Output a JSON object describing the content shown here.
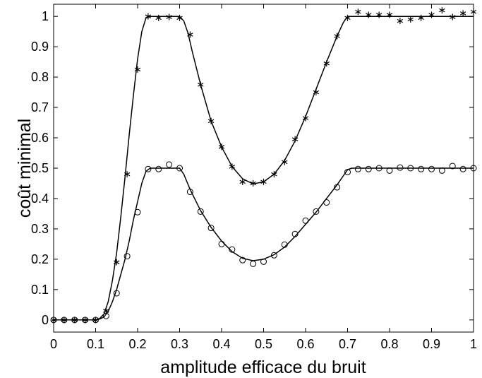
{
  "chart_data": {
    "type": "line",
    "title": "",
    "xlabel": "amplitude efficace du bruit",
    "ylabel": "coût minimal",
    "xlim": [
      0,
      1
    ],
    "ylim": [
      -0.04,
      1.04
    ],
    "xticks": [
      0,
      0.1,
      0.2,
      0.3,
      0.4,
      0.5,
      0.6,
      0.7,
      0.8,
      0.9,
      1
    ],
    "xtick_labels": [
      "0",
      "0.1",
      "0.2",
      "0.3",
      "0.4",
      "0.5",
      "0.6",
      "0.7",
      "0.8",
      "0.9",
      "1"
    ],
    "yticks": [
      0,
      0.1,
      0.2,
      0.3,
      0.4,
      0.5,
      0.6,
      0.7,
      0.8,
      0.9,
      1
    ],
    "ytick_labels": [
      "0",
      "0.1",
      "0.2",
      "0.3",
      "0.4",
      "0.5",
      "0.6",
      "0.7",
      "0.8",
      "0.9",
      "1"
    ],
    "grid": false,
    "legend": false,
    "series": [
      {
        "marker": "asterisk",
        "color": "#000000",
        "points": [
          [
            0,
            0
          ],
          [
            0.025,
            0
          ],
          [
            0.05,
            0
          ],
          [
            0.075,
            0
          ],
          [
            0.1,
            0
          ],
          [
            0.125,
            0.03
          ],
          [
            0.15,
            0.19
          ],
          [
            0.175,
            0.48
          ],
          [
            0.2,
            0.825
          ],
          [
            0.225,
            1.0
          ],
          [
            0.25,
            0.995
          ],
          [
            0.275,
            0.998
          ],
          [
            0.3,
            0.995
          ],
          [
            0.325,
            0.94
          ],
          [
            0.35,
            0.775
          ],
          [
            0.375,
            0.655
          ],
          [
            0.4,
            0.57
          ],
          [
            0.425,
            0.505
          ],
          [
            0.45,
            0.455
          ],
          [
            0.475,
            0.45
          ],
          [
            0.5,
            0.455
          ],
          [
            0.525,
            0.48
          ],
          [
            0.55,
            0.52
          ],
          [
            0.575,
            0.595
          ],
          [
            0.6,
            0.665
          ],
          [
            0.625,
            0.75
          ],
          [
            0.65,
            0.845
          ],
          [
            0.675,
            0.935
          ],
          [
            0.7,
            0.995
          ],
          [
            0.725,
            1.015
          ],
          [
            0.75,
            1.005
          ],
          [
            0.775,
            1.005
          ],
          [
            0.8,
            1.005
          ],
          [
            0.825,
            0.985
          ],
          [
            0.85,
            0.99
          ],
          [
            0.875,
            0.995
          ],
          [
            0.9,
            1.005
          ],
          [
            0.925,
            1.02
          ],
          [
            0.95,
            0.998
          ],
          [
            0.975,
            1.01
          ],
          [
            1.0,
            1.015
          ]
        ],
        "fit": [
          [
            0,
            0
          ],
          [
            0.1,
            0
          ],
          [
            0.11,
            0.005
          ],
          [
            0.12,
            0.02
          ],
          [
            0.13,
            0.06
          ],
          [
            0.14,
            0.13
          ],
          [
            0.15,
            0.22
          ],
          [
            0.16,
            0.34
          ],
          [
            0.17,
            0.47
          ],
          [
            0.18,
            0.61
          ],
          [
            0.19,
            0.74
          ],
          [
            0.2,
            0.86
          ],
          [
            0.21,
            0.95
          ],
          [
            0.22,
            0.995
          ],
          [
            0.23,
            1.0
          ],
          [
            0.3,
            1.0
          ],
          [
            0.31,
            0.985
          ],
          [
            0.32,
            0.945
          ],
          [
            0.33,
            0.885
          ],
          [
            0.35,
            0.775
          ],
          [
            0.375,
            0.655
          ],
          [
            0.4,
            0.57
          ],
          [
            0.425,
            0.505
          ],
          [
            0.45,
            0.465
          ],
          [
            0.475,
            0.448
          ],
          [
            0.5,
            0.455
          ],
          [
            0.525,
            0.48
          ],
          [
            0.55,
            0.525
          ],
          [
            0.575,
            0.59
          ],
          [
            0.6,
            0.67
          ],
          [
            0.625,
            0.76
          ],
          [
            0.65,
            0.85
          ],
          [
            0.675,
            0.935
          ],
          [
            0.69,
            0.98
          ],
          [
            0.7,
            1.0
          ],
          [
            1.0,
            1.0
          ]
        ]
      },
      {
        "marker": "circle",
        "color": "#000000",
        "points": [
          [
            0,
            0
          ],
          [
            0.025,
            0
          ],
          [
            0.05,
            0
          ],
          [
            0.075,
            0
          ],
          [
            0.1,
            0
          ],
          [
            0.125,
            0.013
          ],
          [
            0.15,
            0.088
          ],
          [
            0.175,
            0.21
          ],
          [
            0.2,
            0.355
          ],
          [
            0.225,
            0.497
          ],
          [
            0.25,
            0.497
          ],
          [
            0.275,
            0.512
          ],
          [
            0.3,
            0.5
          ],
          [
            0.325,
            0.422
          ],
          [
            0.35,
            0.357
          ],
          [
            0.375,
            0.303
          ],
          [
            0.4,
            0.25
          ],
          [
            0.425,
            0.232
          ],
          [
            0.45,
            0.197
          ],
          [
            0.475,
            0.185
          ],
          [
            0.5,
            0.192
          ],
          [
            0.525,
            0.213
          ],
          [
            0.55,
            0.248
          ],
          [
            0.575,
            0.283
          ],
          [
            0.6,
            0.327
          ],
          [
            0.625,
            0.357
          ],
          [
            0.65,
            0.387
          ],
          [
            0.675,
            0.437
          ],
          [
            0.7,
            0.487
          ],
          [
            0.725,
            0.497
          ],
          [
            0.75,
            0.497
          ],
          [
            0.775,
            0.5
          ],
          [
            0.8,
            0.492
          ],
          [
            0.825,
            0.502
          ],
          [
            0.85,
            0.5
          ],
          [
            0.875,
            0.497
          ],
          [
            0.9,
            0.497
          ],
          [
            0.925,
            0.492
          ],
          [
            0.95,
            0.507
          ],
          [
            0.975,
            0.497
          ],
          [
            1.0,
            0.5
          ]
        ],
        "fit": [
          [
            0,
            0
          ],
          [
            0.1,
            0
          ],
          [
            0.11,
            0.003
          ],
          [
            0.12,
            0.01
          ],
          [
            0.13,
            0.028
          ],
          [
            0.14,
            0.06
          ],
          [
            0.15,
            0.1
          ],
          [
            0.16,
            0.15
          ],
          [
            0.17,
            0.2
          ],
          [
            0.18,
            0.26
          ],
          [
            0.19,
            0.33
          ],
          [
            0.2,
            0.39
          ],
          [
            0.21,
            0.45
          ],
          [
            0.22,
            0.49
          ],
          [
            0.23,
            0.5
          ],
          [
            0.3,
            0.5
          ],
          [
            0.31,
            0.48
          ],
          [
            0.325,
            0.43
          ],
          [
            0.35,
            0.36
          ],
          [
            0.375,
            0.305
          ],
          [
            0.4,
            0.26
          ],
          [
            0.425,
            0.225
          ],
          [
            0.45,
            0.203
          ],
          [
            0.475,
            0.195
          ],
          [
            0.5,
            0.2
          ],
          [
            0.525,
            0.215
          ],
          [
            0.55,
            0.24
          ],
          [
            0.575,
            0.275
          ],
          [
            0.6,
            0.315
          ],
          [
            0.625,
            0.355
          ],
          [
            0.65,
            0.4
          ],
          [
            0.675,
            0.445
          ],
          [
            0.69,
            0.475
          ],
          [
            0.7,
            0.495
          ],
          [
            0.71,
            0.5
          ],
          [
            1.0,
            0.5
          ]
        ]
      }
    ]
  }
}
